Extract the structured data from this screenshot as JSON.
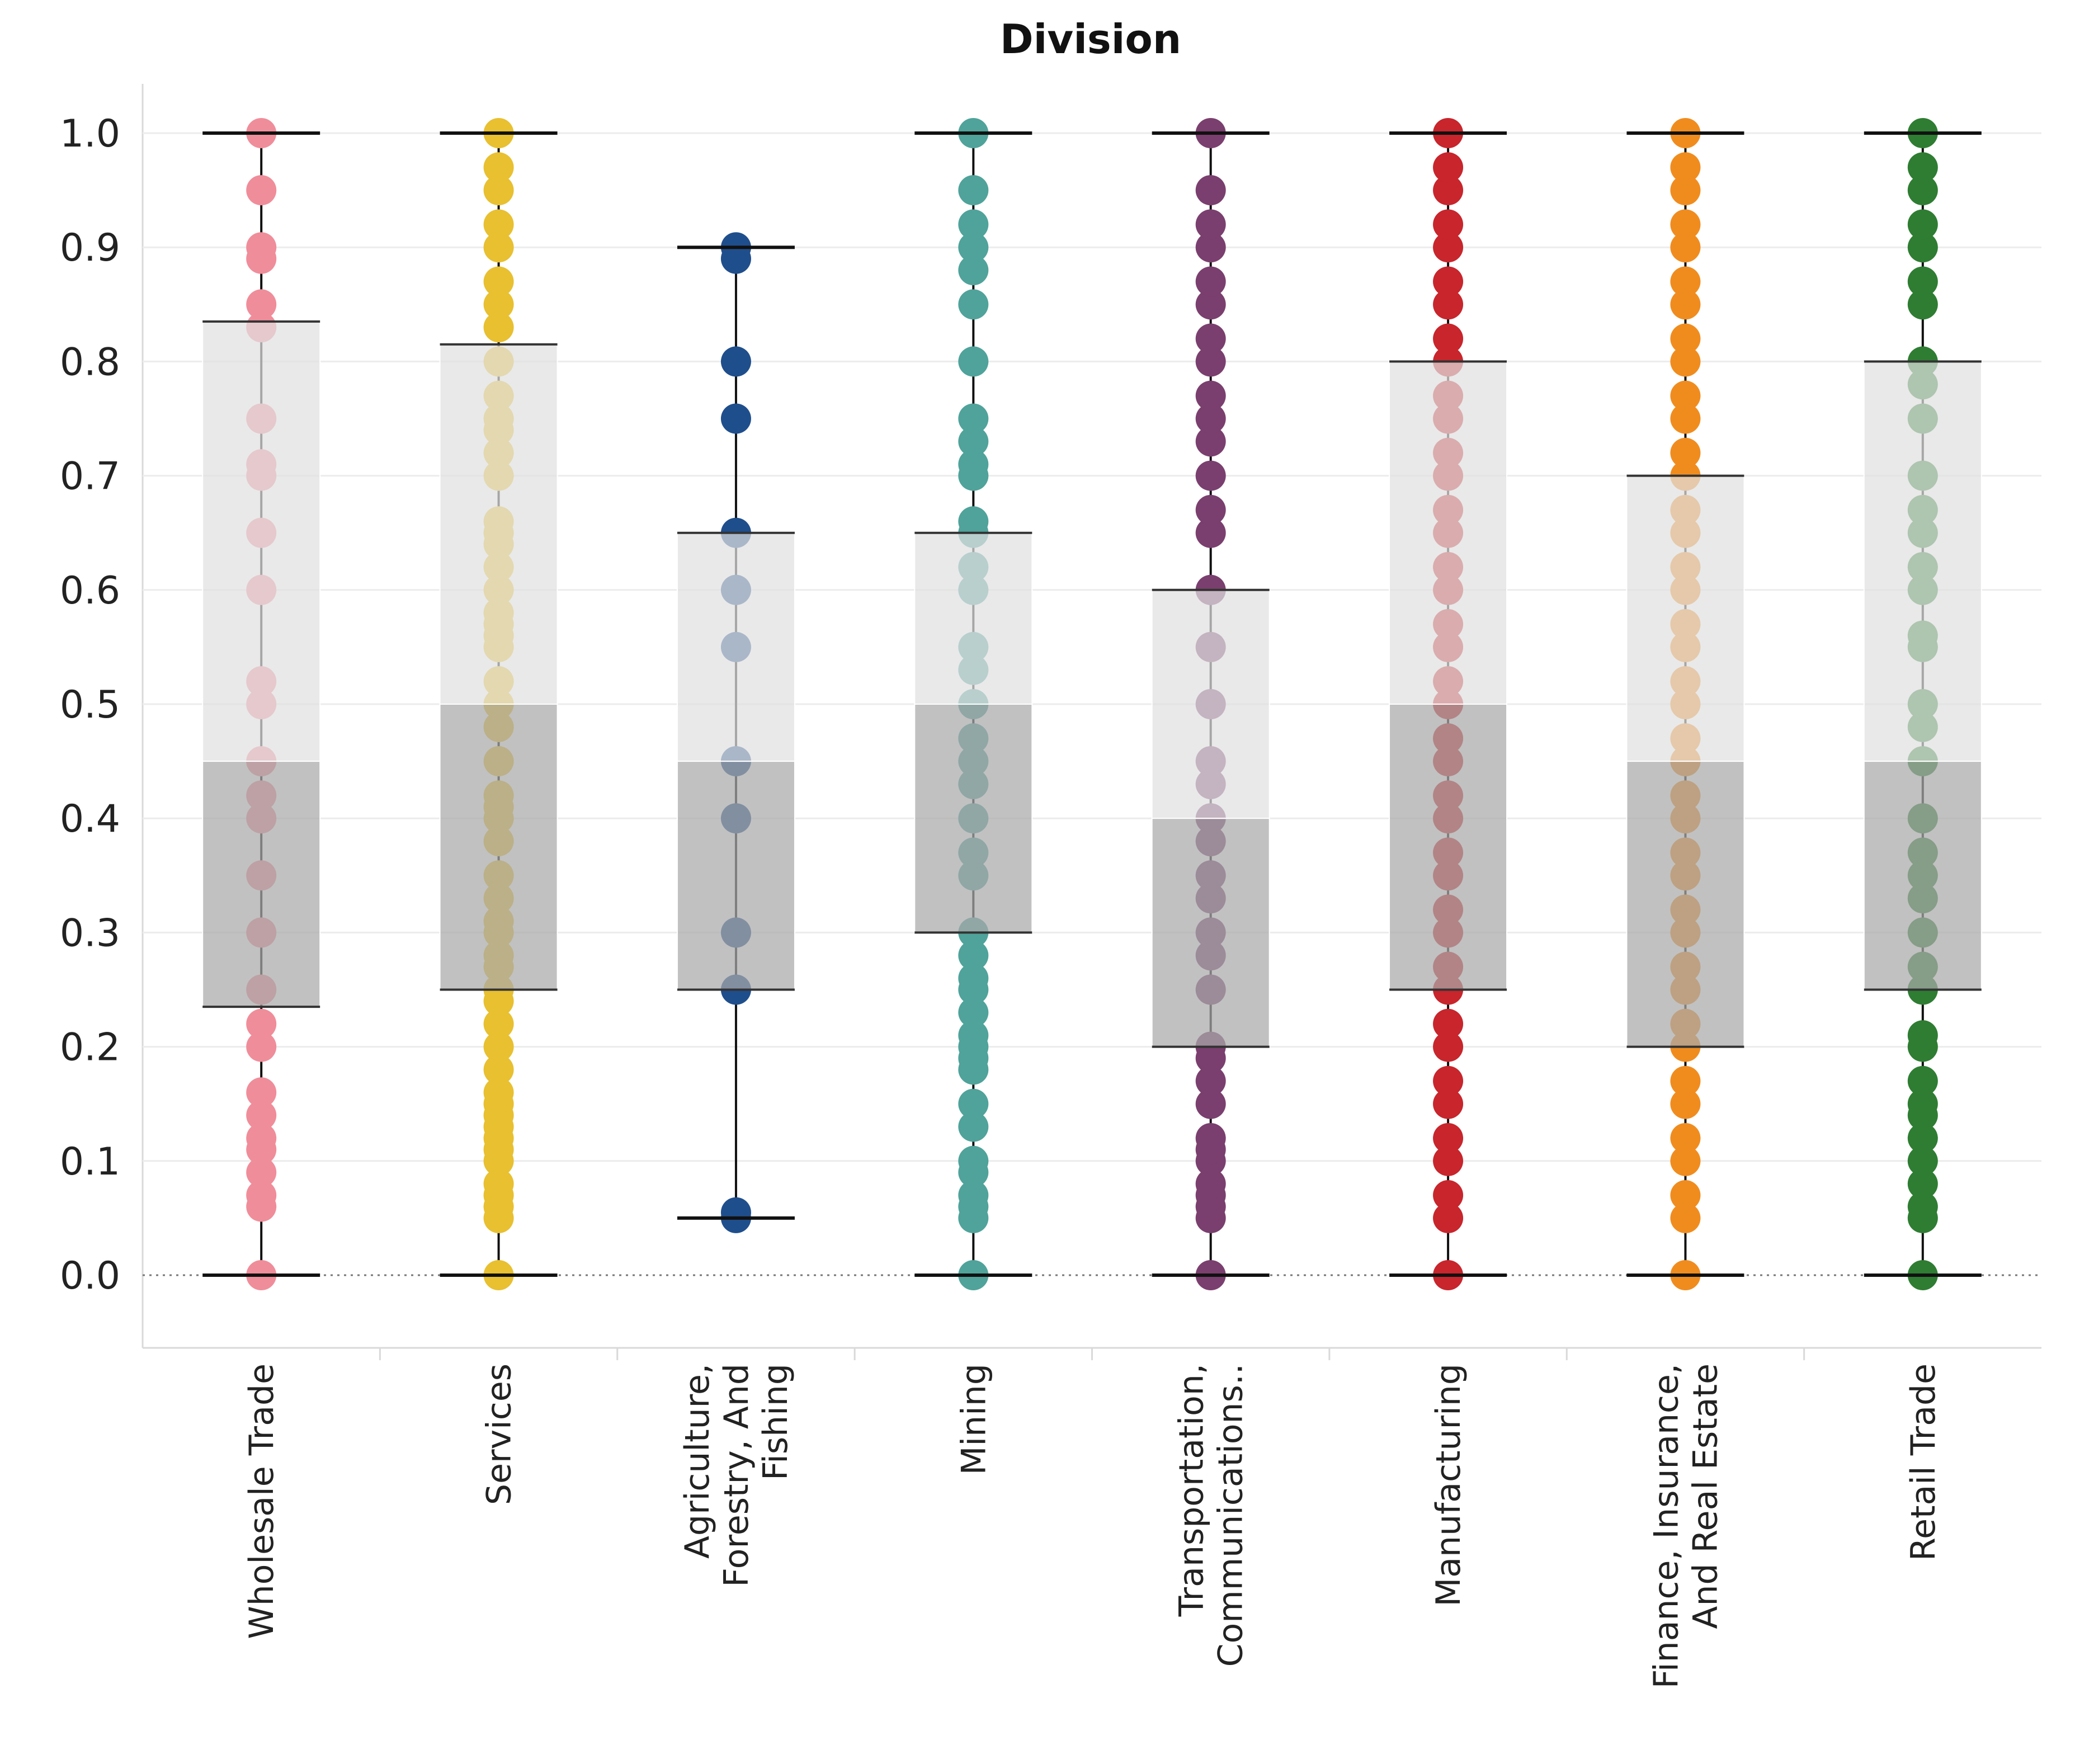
{
  "chart_data": {
    "type": "box",
    "title": "Division",
    "xlabel": "",
    "ylabel": "",
    "ylim": [
      -0.06,
      1.06
    ],
    "yticks": [
      "0.0",
      "0.1",
      "0.2",
      "0.3",
      "0.4",
      "0.5",
      "0.6",
      "0.7",
      "0.8",
      "0.9",
      "1.0"
    ],
    "categories": [
      {
        "name": "Wholesale Trade",
        "label_lines": [
          "Wholesale Trade"
        ],
        "color": "#f08d9a",
        "whisker_low": 0.0,
        "q1": 0.235,
        "median": 0.45,
        "q3": 0.835,
        "whisker_high": 1.0,
        "points": [
          0,
          0.06,
          0.07,
          0.09,
          0.11,
          0.12,
          0.14,
          0.16,
          0.2,
          0.22,
          0.25,
          0.3,
          0.35,
          0.4,
          0.42,
          0.45,
          0.5,
          0.52,
          0.6,
          0.65,
          0.7,
          0.71,
          0.75,
          0.83,
          0.85,
          0.89,
          0.9,
          0.95,
          1.0
        ]
      },
      {
        "name": "Services",
        "label_lines": [
          "Services"
        ],
        "color": "#e8c030",
        "whisker_low": 0.0,
        "q1": 0.25,
        "median": 0.5,
        "q3": 0.815,
        "whisker_high": 1.0,
        "points": [
          0,
          0.05,
          0.06,
          0.07,
          0.08,
          0.1,
          0.11,
          0.12,
          0.13,
          0.14,
          0.15,
          0.16,
          0.18,
          0.2,
          0.22,
          0.24,
          0.25,
          0.27,
          0.28,
          0.3,
          0.31,
          0.33,
          0.35,
          0.38,
          0.4,
          0.41,
          0.42,
          0.45,
          0.48,
          0.5,
          0.52,
          0.55,
          0.56,
          0.57,
          0.58,
          0.6,
          0.62,
          0.64,
          0.65,
          0.66,
          0.7,
          0.72,
          0.74,
          0.75,
          0.77,
          0.8,
          0.83,
          0.85,
          0.87,
          0.9,
          0.92,
          0.95,
          0.97,
          1.0
        ]
      },
      {
        "name": "Agriculture, Forestry, And Fishing",
        "label_lines": [
          "Agriculture,",
          "Forestry, And",
          "Fishing"
        ],
        "color": "#1f4e8c",
        "whisker_low": 0.05,
        "q1": 0.25,
        "median": 0.45,
        "q3": 0.65,
        "whisker_high": 0.9,
        "points": [
          0.05,
          0.055,
          0.25,
          0.3,
          0.4,
          0.45,
          0.55,
          0.6,
          0.65,
          0.75,
          0.8,
          0.89,
          0.9
        ]
      },
      {
        "name": "Mining",
        "label_lines": [
          "Mining"
        ],
        "color": "#4fa39a",
        "whisker_low": 0.0,
        "q1": 0.3,
        "median": 0.5,
        "q3": 0.65,
        "whisker_high": 1.0,
        "points": [
          0,
          0.05,
          0.06,
          0.07,
          0.09,
          0.1,
          0.13,
          0.15,
          0.18,
          0.19,
          0.2,
          0.21,
          0.23,
          0.25,
          0.26,
          0.28,
          0.3,
          0.35,
          0.37,
          0.4,
          0.43,
          0.45,
          0.47,
          0.5,
          0.53,
          0.55,
          0.6,
          0.62,
          0.65,
          0.66,
          0.7,
          0.71,
          0.73,
          0.75,
          0.8,
          0.85,
          0.88,
          0.9,
          0.92,
          0.95,
          1.0
        ]
      },
      {
        "name": "Transportation, Communications..",
        "label_lines": [
          "Transportation,",
          "Communications.."
        ],
        "color": "#7a3f6e",
        "whisker_low": 0.0,
        "q1": 0.2,
        "median": 0.4,
        "q3": 0.6,
        "whisker_high": 1.0,
        "points": [
          0,
          0.05,
          0.06,
          0.07,
          0.08,
          0.1,
          0.11,
          0.12,
          0.15,
          0.17,
          0.19,
          0.2,
          0.25,
          0.28,
          0.3,
          0.33,
          0.35,
          0.38,
          0.4,
          0.43,
          0.45,
          0.5,
          0.55,
          0.6,
          0.65,
          0.67,
          0.7,
          0.73,
          0.75,
          0.77,
          0.8,
          0.82,
          0.85,
          0.87,
          0.9,
          0.92,
          0.95,
          1.0
        ]
      },
      {
        "name": "Manufacturing",
        "label_lines": [
          "Manufacturing"
        ],
        "color": "#c8252c",
        "whisker_low": 0.0,
        "q1": 0.25,
        "median": 0.5,
        "q3": 0.8,
        "whisker_high": 1.0,
        "points": [
          0,
          0.05,
          0.07,
          0.1,
          0.12,
          0.15,
          0.17,
          0.2,
          0.22,
          0.25,
          0.27,
          0.3,
          0.32,
          0.35,
          0.37,
          0.4,
          0.42,
          0.45,
          0.47,
          0.5,
          0.52,
          0.55,
          0.57,
          0.6,
          0.62,
          0.65,
          0.67,
          0.7,
          0.72,
          0.75,
          0.77,
          0.8,
          0.82,
          0.85,
          0.87,
          0.9,
          0.92,
          0.95,
          0.97,
          1.0
        ]
      },
      {
        "name": "Finance, Insurance, And Real Estate",
        "label_lines": [
          "Finance, Insurance,",
          "And Real Estate"
        ],
        "color": "#f08c1e",
        "whisker_low": 0.0,
        "q1": 0.2,
        "median": 0.45,
        "q3": 0.7,
        "whisker_high": 1.0,
        "points": [
          0,
          0.05,
          0.07,
          0.1,
          0.12,
          0.15,
          0.17,
          0.2,
          0.22,
          0.25,
          0.27,
          0.3,
          0.32,
          0.35,
          0.37,
          0.4,
          0.42,
          0.45,
          0.47,
          0.5,
          0.52,
          0.55,
          0.57,
          0.6,
          0.62,
          0.65,
          0.67,
          0.7,
          0.72,
          0.75,
          0.77,
          0.8,
          0.82,
          0.85,
          0.87,
          0.9,
          0.92,
          0.95,
          0.97,
          1.0
        ]
      },
      {
        "name": "Retail Trade",
        "label_lines": [
          "Retail Trade"
        ],
        "color": "#2e7d32",
        "whisker_low": 0.0,
        "q1": 0.25,
        "median": 0.45,
        "q3": 0.8,
        "whisker_high": 1.0,
        "points": [
          0,
          0.05,
          0.06,
          0.08,
          0.1,
          0.12,
          0.14,
          0.15,
          0.17,
          0.2,
          0.21,
          0.25,
          0.27,
          0.3,
          0.33,
          0.35,
          0.37,
          0.4,
          0.45,
          0.48,
          0.5,
          0.55,
          0.56,
          0.6,
          0.62,
          0.65,
          0.67,
          0.7,
          0.75,
          0.78,
          0.8,
          0.85,
          0.87,
          0.9,
          0.92,
          0.95,
          0.97,
          1.0
        ]
      }
    ]
  }
}
